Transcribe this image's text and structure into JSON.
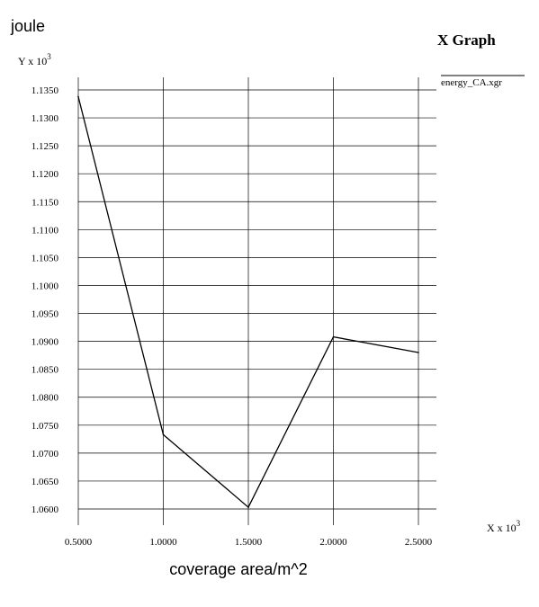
{
  "chart_data": {
    "type": "line",
    "title": "X Graph",
    "ylabel": "joule",
    "xlabel": "coverage area/m^2",
    "y_multiplier": "Y x 10",
    "x_multiplier": "X x 10",
    "multiplier_exponent": "3",
    "legend": {
      "entries": [
        "energy_CA.xgr"
      ],
      "placement": "top-right"
    },
    "grid": true,
    "xlim": [
      0.5,
      2.5
    ],
    "ylim": [
      1.06,
      1.135
    ],
    "x_ticks": [
      "0.5000",
      "1.0000",
      "1.5000",
      "2.0000",
      "2.5000"
    ],
    "y_ticks": [
      "1.0600",
      "1.0650",
      "1.0700",
      "1.0750",
      "1.0800",
      "1.0850",
      "1.0900",
      "1.0950",
      "1.1000",
      "1.1050",
      "1.1100",
      "1.1150",
      "1.1200",
      "1.1250",
      "1.1300",
      "1.1350"
    ],
    "series": [
      {
        "name": "energy_CA.xgr",
        "x": [
          0.5,
          1.0,
          1.5,
          2.0,
          2.5
        ],
        "y": [
          1.1338,
          1.0733,
          1.0603,
          1.0908,
          1.088
        ]
      }
    ]
  }
}
